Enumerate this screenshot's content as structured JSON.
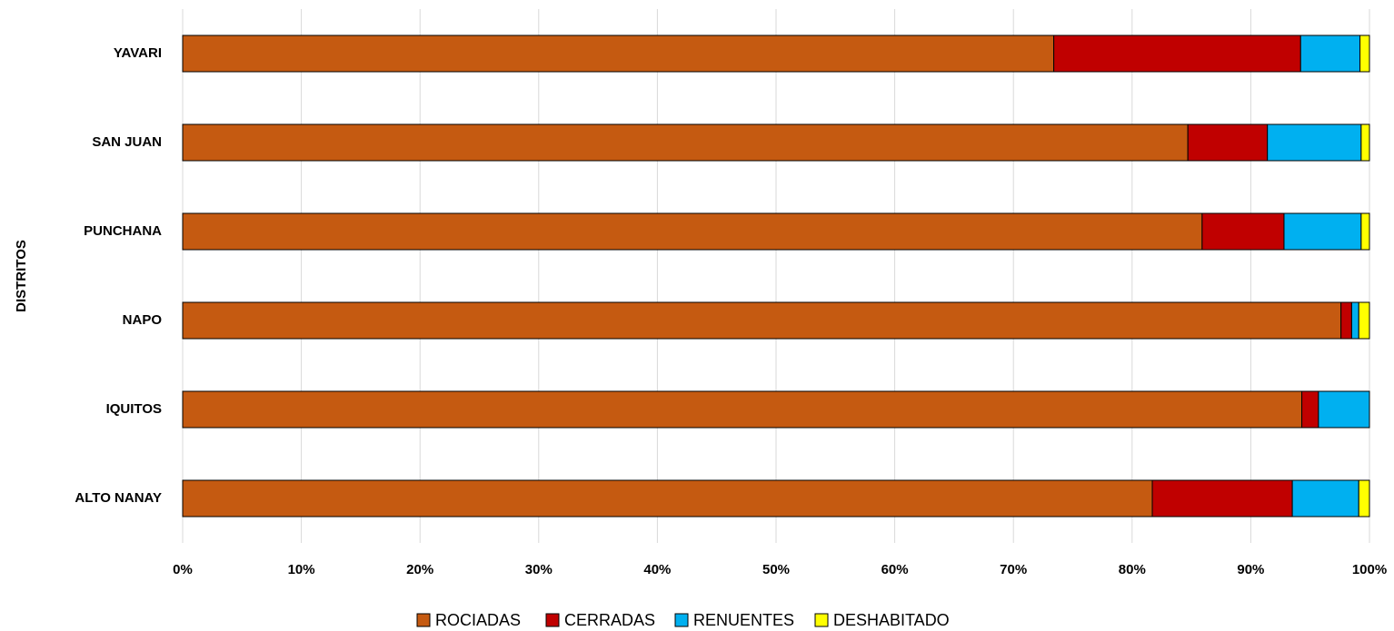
{
  "chart_data": {
    "type": "stacked_barh",
    "y_label": "DISTRITOS",
    "categories": [
      "ALTO NANAY",
      "IQUITOS",
      "NAPO",
      "PUNCHANA",
      "SAN JUAN",
      "YAVARI"
    ],
    "series": [
      {
        "name": "ROCIADAS",
        "color": "#c55a11",
        "values": [
          81.7,
          94.3,
          97.6,
          85.9,
          84.7,
          73.4
        ]
      },
      {
        "name": "CERRADAS",
        "color": "#c00000",
        "values": [
          11.8,
          1.4,
          0.9,
          6.9,
          6.7,
          20.8
        ]
      },
      {
        "name": "RENUENTES",
        "color": "#00b0f0",
        "values": [
          5.6,
          4.3,
          0.6,
          6.5,
          7.9,
          5.0
        ]
      },
      {
        "name": "DESHABITADO",
        "color": "#ffff00",
        "values": [
          0.9,
          0,
          0.9,
          0.7,
          0.7,
          0.8
        ]
      }
    ],
    "xlim": [
      0,
      100
    ],
    "xticks": [
      {
        "value": 0,
        "label": "0%"
      },
      {
        "value": 10,
        "label": "10%"
      },
      {
        "value": 20,
        "label": "20%"
      },
      {
        "value": 30,
        "label": "30%"
      },
      {
        "value": 40,
        "label": "40%"
      },
      {
        "value": 50,
        "label": "50%"
      },
      {
        "value": 60,
        "label": "60%"
      },
      {
        "value": 70,
        "label": "70%"
      },
      {
        "value": 80,
        "label": "80%"
      },
      {
        "value": 90,
        "label": "90%"
      },
      {
        "value": 100,
        "label": "100%"
      }
    ],
    "grid": true,
    "legend": "bottom"
  }
}
